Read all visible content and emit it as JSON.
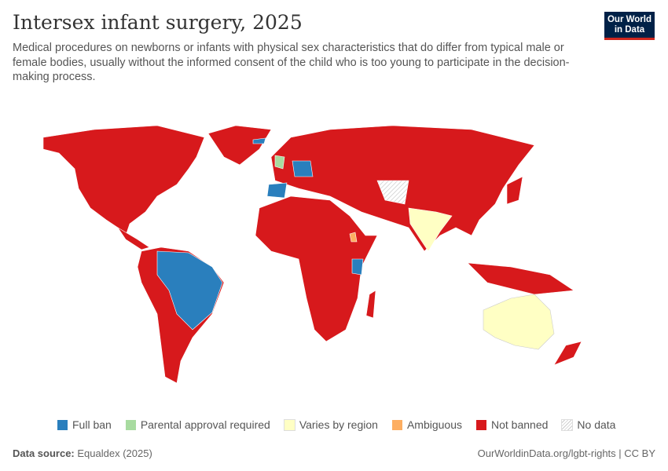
{
  "header": {
    "title": "Intersex infant surgery, 2025",
    "subtitle": "Medical procedures on newborns or infants with physical sex characteristics that do differ from typical male or female bodies, usually without the informed consent of the child who is too young to participate in the decision-making process.",
    "logo": "Our World in Data"
  },
  "legend": [
    {
      "label": "Full ban",
      "color": "#2a7fbd"
    },
    {
      "label": "Parental approval required",
      "color": "#a8dba0"
    },
    {
      "label": "Varies by region",
      "color": "#ffffc4"
    },
    {
      "label": "Ambiguous",
      "color": "#fdae61"
    },
    {
      "label": "Not banned",
      "color": "#d7191c"
    },
    {
      "label": "No data",
      "color": "hatched"
    }
  ],
  "footer": {
    "source_label": "Data source:",
    "source": "Equaldex (2025)",
    "url": "OurWorldinData.org/lgbt-rights | CC BY"
  }
}
